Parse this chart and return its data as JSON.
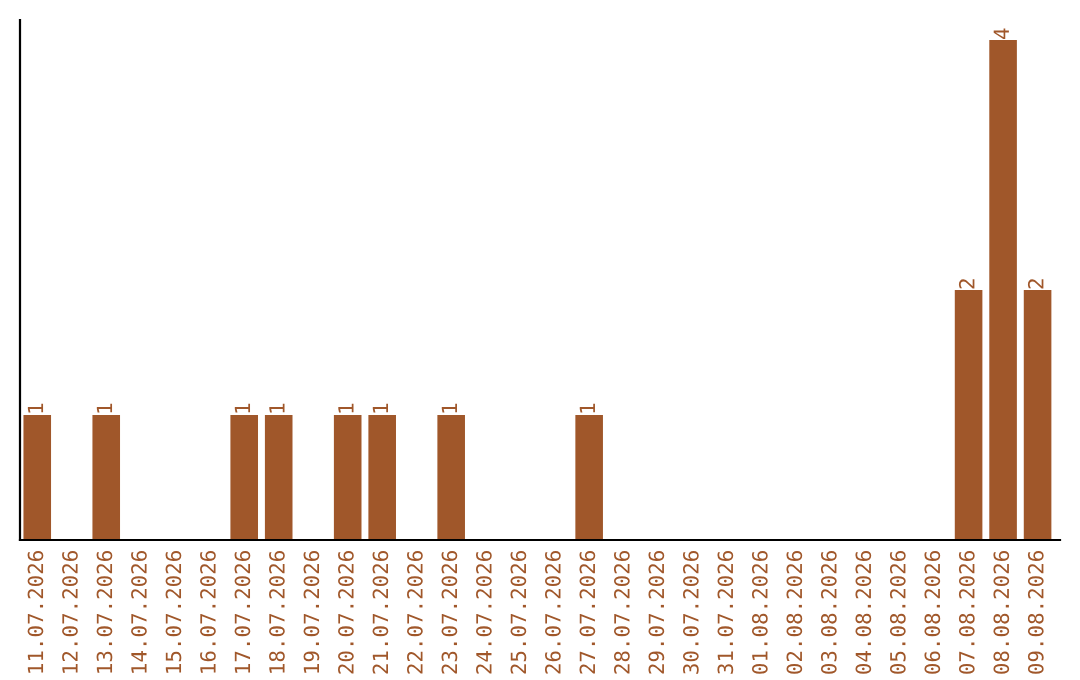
{
  "chart_data": {
    "type": "bar",
    "categories": [
      "11.07.2026",
      "12.07.2026",
      "13.07.2026",
      "14.07.2026",
      "15.07.2026",
      "16.07.2026",
      "17.07.2026",
      "18.07.2026",
      "19.07.2026",
      "20.07.2026",
      "21.07.2026",
      "22.07.2026",
      "23.07.2026",
      "24.07.2026",
      "25.07.2026",
      "26.07.2026",
      "27.07.2026",
      "28.07.2026",
      "29.07.2026",
      "30.07.2026",
      "31.07.2026",
      "01.08.2026",
      "02.08.2026",
      "03.08.2026",
      "04.08.2026",
      "05.08.2026",
      "06.08.2026",
      "07.08.2026",
      "08.08.2026",
      "09.08.2026"
    ],
    "values": [
      1,
      0,
      1,
      0,
      0,
      0,
      1,
      1,
      0,
      1,
      1,
      0,
      1,
      0,
      0,
      0,
      1,
      0,
      0,
      0,
      0,
      0,
      0,
      0,
      0,
      0,
      0,
      2,
      4,
      2
    ],
    "value_labels": [
      "1",
      null,
      "1",
      null,
      null,
      null,
      "1",
      "1",
      null,
      "1",
      "1",
      null,
      "1",
      null,
      null,
      null,
      "1",
      null,
      null,
      null,
      null,
      null,
      null,
      null,
      null,
      null,
      null,
      "2",
      "4",
      "2"
    ],
    "color": "#a0572a",
    "ylim": [
      0,
      4.16
    ],
    "tick_labels": "x",
    "grid": false,
    "legend": false
  }
}
